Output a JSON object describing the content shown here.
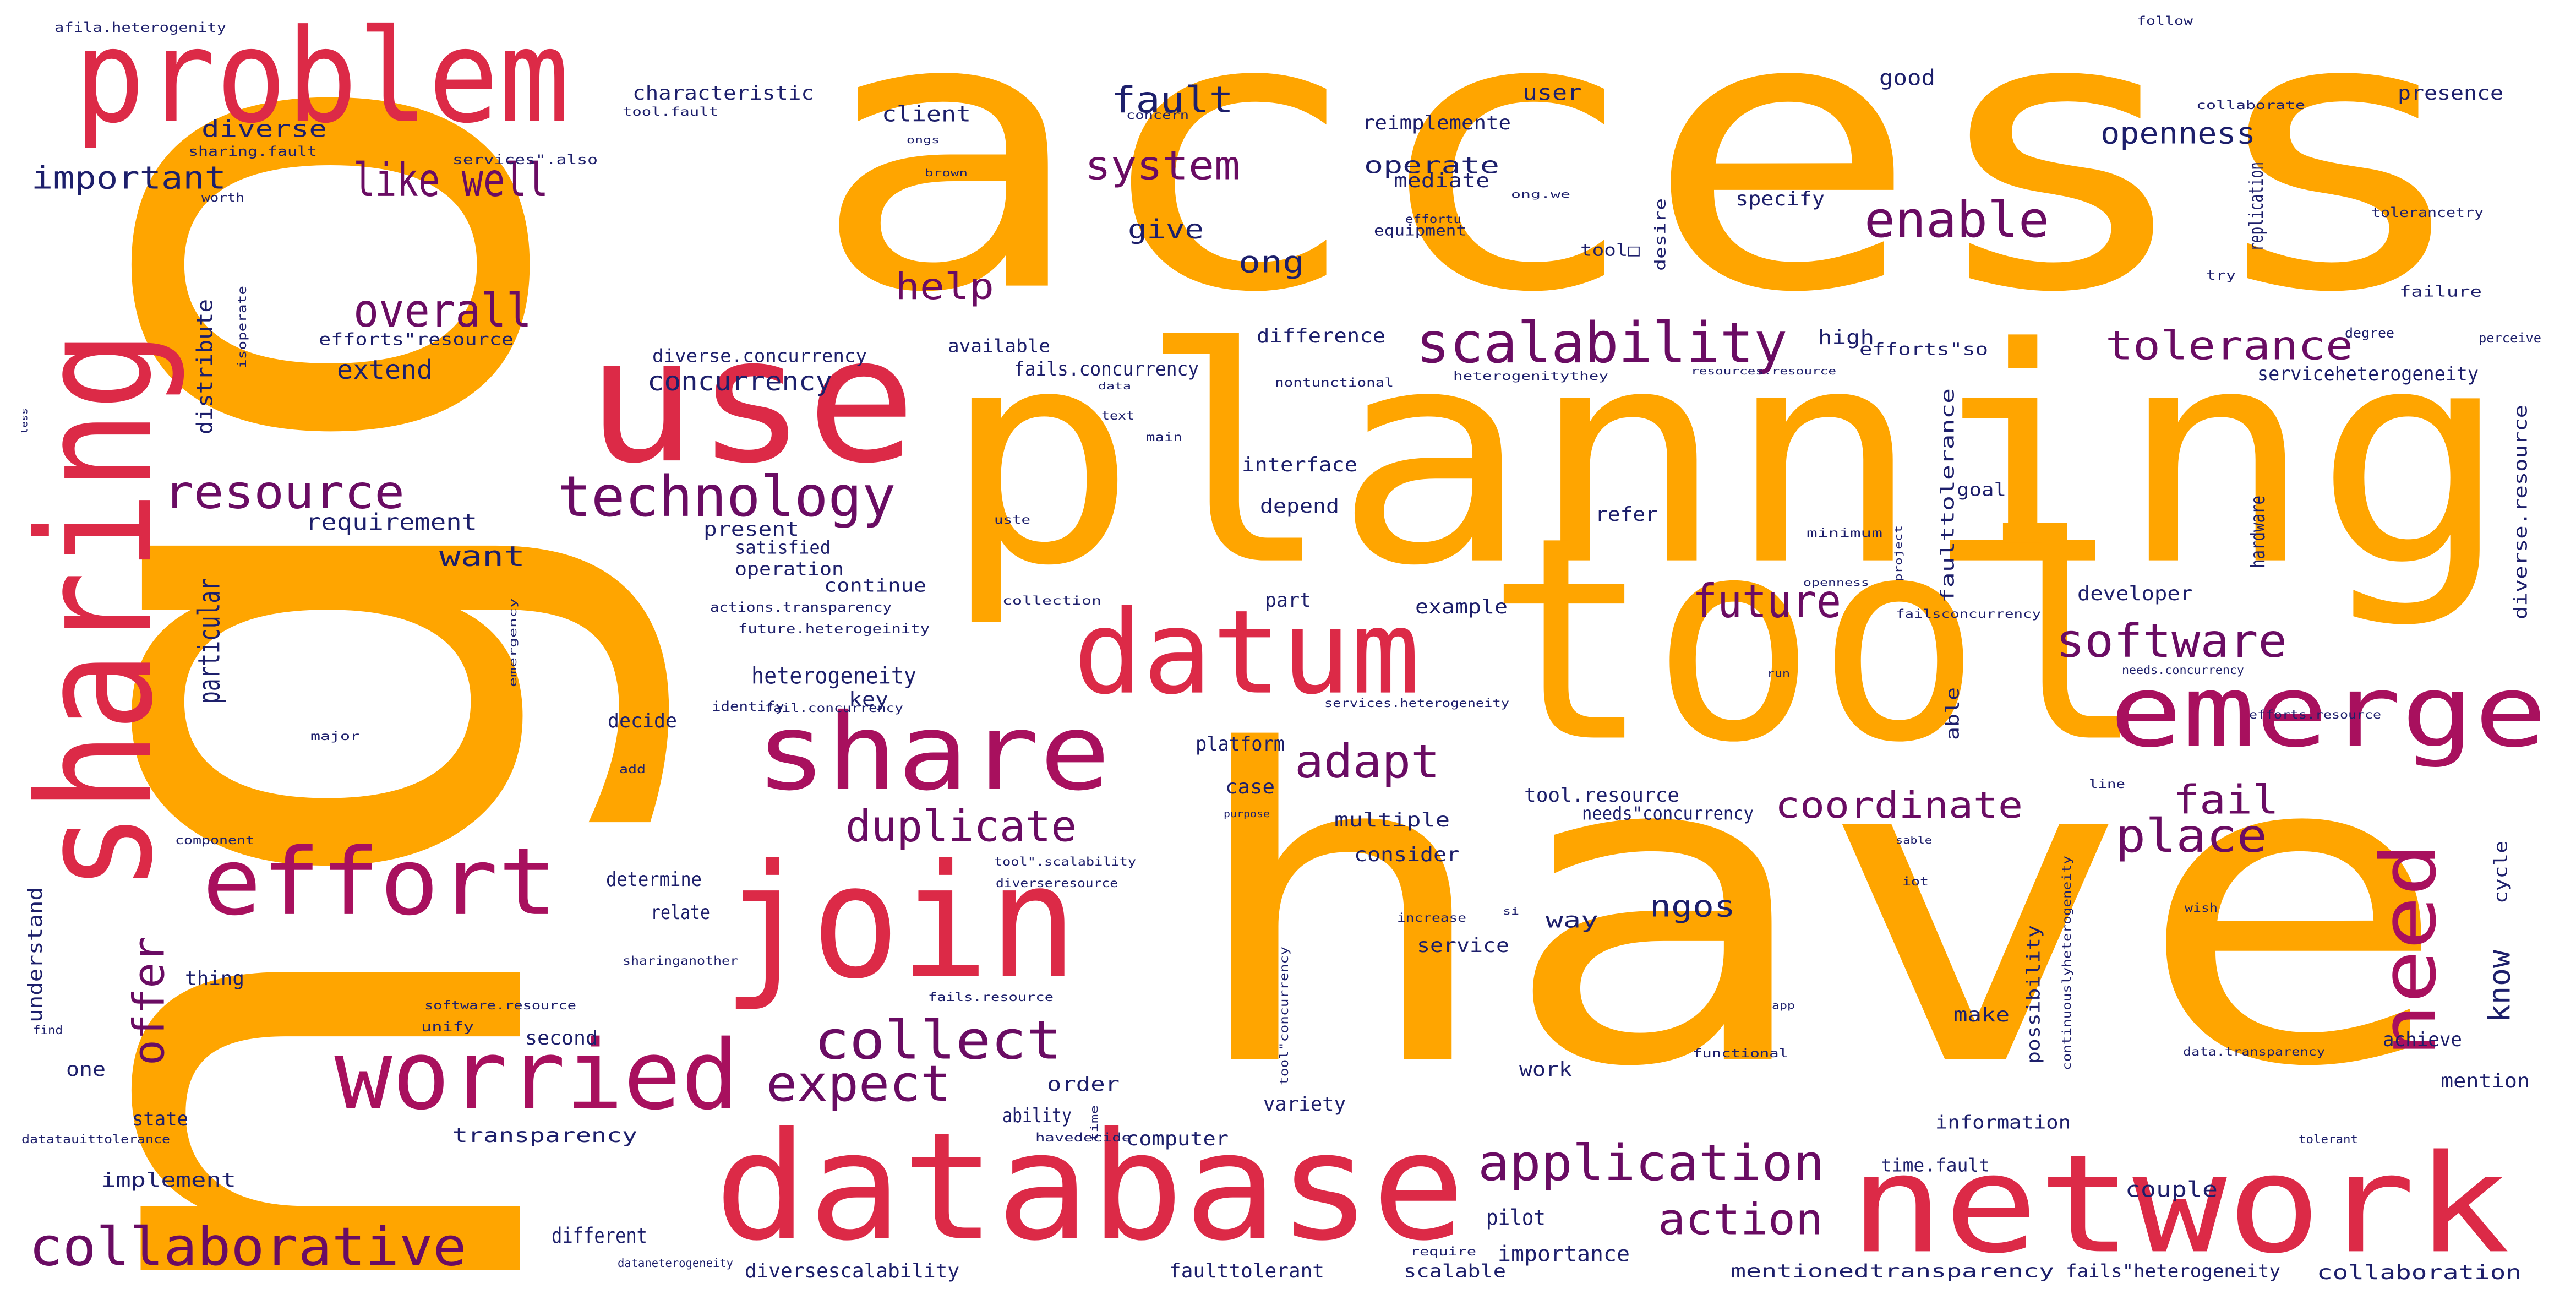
{
  "palette": {
    "orange": "#FFA500",
    "crimson": "#DC2A47",
    "magenta": "#A8105E",
    "purple": "#6A0C63",
    "navy": "#1D1F6B"
  },
  "words": [
    {
      "text": "access",
      "color": "orange"
    },
    {
      "text": "ngo",
      "color": "orange"
    },
    {
      "text": "planning",
      "color": "orange"
    },
    {
      "text": "have",
      "color": "orange"
    },
    {
      "text": "tool",
      "color": "orange"
    },
    {
      "text": "problem",
      "color": "crimson"
    },
    {
      "text": "sharing",
      "color": "crimson"
    },
    {
      "text": "use",
      "color": "crimson"
    },
    {
      "text": "database",
      "color": "crimson"
    },
    {
      "text": "join",
      "color": "crimson"
    },
    {
      "text": "network",
      "color": "crimson"
    },
    {
      "text": "share",
      "color": "magenta"
    },
    {
      "text": "datum",
      "color": "crimson"
    },
    {
      "text": "emerge",
      "color": "magenta"
    },
    {
      "text": "worried",
      "color": "magenta"
    },
    {
      "text": "effort",
      "color": "magenta"
    },
    {
      "text": "need",
      "color": "magenta"
    },
    {
      "text": "technology",
      "color": "purple"
    },
    {
      "text": "scalability",
      "color": "purple"
    },
    {
      "text": "collaborative",
      "color": "purple"
    },
    {
      "text": "application",
      "color": "purple"
    },
    {
      "text": "collect",
      "color": "purple"
    },
    {
      "text": "expect",
      "color": "purple"
    },
    {
      "text": "like well",
      "color": "purple"
    },
    {
      "text": "enable",
      "color": "purple"
    },
    {
      "text": "software",
      "color": "purple"
    },
    {
      "text": "resource",
      "color": "purple"
    },
    {
      "text": "overall",
      "color": "purple"
    },
    {
      "text": "duplicate",
      "color": "purple"
    },
    {
      "text": "adapt",
      "color": "purple"
    },
    {
      "text": "future",
      "color": "purple"
    },
    {
      "text": "place",
      "color": "purple"
    },
    {
      "text": "action",
      "color": "purple"
    },
    {
      "text": "offer",
      "color": "purple"
    },
    {
      "text": "system",
      "color": "purple"
    },
    {
      "text": "tolerance",
      "color": "purple"
    },
    {
      "text": "coordinate",
      "color": "purple"
    },
    {
      "text": "help",
      "color": "purple"
    },
    {
      "text": "fail",
      "color": "purple"
    },
    {
      "text": "fault",
      "color": "navy"
    },
    {
      "text": "openness",
      "color": "navy"
    },
    {
      "text": "important",
      "color": "navy"
    },
    {
      "text": "particular",
      "color": "navy"
    },
    {
      "text": "ong",
      "color": "navy"
    },
    {
      "text": "know",
      "color": "navy"
    },
    {
      "text": "want",
      "color": "navy"
    },
    {
      "text": "ngos",
      "color": "navy"
    },
    {
      "text": "concurrency",
      "color": "navy"
    },
    {
      "text": "heterogeneity",
      "color": "navy"
    },
    {
      "text": "give",
      "color": "navy"
    },
    {
      "text": "operate",
      "color": "navy"
    },
    {
      "text": "extend",
      "color": "navy"
    },
    {
      "text": "requirement",
      "color": "navy"
    },
    {
      "text": "diverse",
      "color": "navy"
    },
    {
      "text": "characteristic",
      "color": "navy"
    },
    {
      "text": "client",
      "color": "navy"
    },
    {
      "text": "user",
      "color": "navy"
    },
    {
      "text": "good",
      "color": "navy"
    },
    {
      "text": "presence",
      "color": "navy"
    },
    {
      "text": "reimplemente",
      "color": "navy"
    },
    {
      "text": "mediate",
      "color": "navy"
    },
    {
      "text": "specify",
      "color": "navy"
    },
    {
      "text": "replication",
      "color": "navy"
    },
    {
      "text": "serviceheterogeneity",
      "color": "navy"
    },
    {
      "text": "diverse.concurrency",
      "color": "navy"
    },
    {
      "text": "fails.concurrency",
      "color": "navy"
    },
    {
      "text": "distribute",
      "color": "navy"
    },
    {
      "text": "available",
      "color": "navy"
    },
    {
      "text": "difference",
      "color": "navy"
    },
    {
      "text": "high",
      "color": "navy"
    },
    {
      "text": "interface",
      "color": "navy"
    },
    {
      "text": "depend",
      "color": "navy"
    },
    {
      "text": "present",
      "color": "navy"
    },
    {
      "text": "satisfied",
      "color": "navy"
    },
    {
      "text": "operation",
      "color": "navy"
    },
    {
      "text": "continue",
      "color": "navy"
    },
    {
      "text": "part",
      "color": "navy"
    },
    {
      "text": "example",
      "color": "navy"
    },
    {
      "text": "refer",
      "color": "navy"
    },
    {
      "text": "developer",
      "color": "navy"
    },
    {
      "text": "hardware",
      "color": "navy"
    },
    {
      "text": "diverse.resource",
      "color": "navy"
    },
    {
      "text": "faulttolerance",
      "color": "navy"
    },
    {
      "text": "goal",
      "color": "navy"
    },
    {
      "text": "key",
      "color": "navy"
    },
    {
      "text": "decide",
      "color": "navy"
    },
    {
      "text": "platform",
      "color": "navy"
    },
    {
      "text": "case",
      "color": "navy"
    },
    {
      "text": "multiple",
      "color": "navy"
    },
    {
      "text": "tool.resource",
      "color": "navy"
    },
    {
      "text": "needs\"concurrency",
      "color": "navy"
    },
    {
      "text": "consider",
      "color": "navy"
    },
    {
      "text": "determine",
      "color": "navy"
    },
    {
      "text": "relate",
      "color": "navy"
    },
    {
      "text": "understand",
      "color": "navy"
    },
    {
      "text": "way",
      "color": "navy"
    },
    {
      "text": "service",
      "color": "navy"
    },
    {
      "text": "able",
      "color": "navy"
    },
    {
      "text": "possibility",
      "color": "navy"
    },
    {
      "text": "make",
      "color": "navy"
    },
    {
      "text": "cycle",
      "color": "navy"
    },
    {
      "text": "achieve",
      "color": "navy"
    },
    {
      "text": "mention",
      "color": "navy"
    },
    {
      "text": "thing",
      "color": "navy"
    },
    {
      "text": "second",
      "color": "navy"
    },
    {
      "text": "one",
      "color": "navy"
    },
    {
      "text": "state",
      "color": "navy"
    },
    {
      "text": "transparency",
      "color": "navy"
    },
    {
      "text": "implement",
      "color": "navy"
    },
    {
      "text": "different",
      "color": "navy"
    },
    {
      "text": "diversescalability",
      "color": "navy"
    },
    {
      "text": "faulttolerant",
      "color": "navy"
    },
    {
      "text": "scalable",
      "color": "navy"
    },
    {
      "text": "importance",
      "color": "navy"
    },
    {
      "text": "pilot",
      "color": "navy"
    },
    {
      "text": "order",
      "color": "navy"
    },
    {
      "text": "ability",
      "color": "navy"
    },
    {
      "text": "computer",
      "color": "navy"
    },
    {
      "text": "variety",
      "color": "navy"
    },
    {
      "text": "work",
      "color": "navy"
    },
    {
      "text": "information",
      "color": "navy"
    },
    {
      "text": "time.fault",
      "color": "navy"
    },
    {
      "text": "couple",
      "color": "navy"
    },
    {
      "text": "collaboration",
      "color": "navy"
    },
    {
      "text": "mentionedtransparency",
      "color": "navy"
    },
    {
      "text": "fails\"heterogeneity",
      "color": "navy"
    },
    {
      "text": "failure",
      "color": "navy"
    },
    {
      "text": "degree",
      "color": "navy"
    },
    {
      "text": "perceive",
      "color": "navy"
    },
    {
      "text": "try",
      "color": "navy"
    },
    {
      "text": "tolerancetry",
      "color": "navy"
    },
    {
      "text": "efforts\"so",
      "color": "navy"
    },
    {
      "text": "efforts\"resource",
      "color": "navy"
    },
    {
      "text": "equipment",
      "color": "navy"
    },
    {
      "text": "desire",
      "color": "navy"
    },
    {
      "text": "tool□",
      "color": "navy"
    },
    {
      "text": "afila.heterogenity",
      "color": "navy"
    },
    {
      "text": "sharing.fault",
      "color": "navy"
    },
    {
      "text": "services\".also",
      "color": "navy"
    },
    {
      "text": "follow",
      "color": "navy"
    },
    {
      "text": "collaborate",
      "color": "navy"
    },
    {
      "text": "nontunctional",
      "color": "navy"
    },
    {
      "text": "heterogenitythey",
      "color": "navy"
    },
    {
      "text": "main",
      "color": "navy"
    },
    {
      "text": "text",
      "color": "navy"
    },
    {
      "text": "data",
      "color": "navy"
    },
    {
      "text": "minimum",
      "color": "navy"
    },
    {
      "text": "openness",
      "color": "navy"
    },
    {
      "text": "project",
      "color": "navy"
    },
    {
      "text": "failsconcurrency",
      "color": "navy"
    },
    {
      "text": "needs.concurrency",
      "color": "navy"
    },
    {
      "text": "efforts.resource",
      "color": "navy"
    },
    {
      "text": "services.heterogeneity",
      "color": "navy"
    },
    {
      "text": "fail.concurrency",
      "color": "navy"
    },
    {
      "text": "identify",
      "color": "navy"
    },
    {
      "text": "future.heterogeinity",
      "color": "navy"
    },
    {
      "text": "actions.transparency",
      "color": "navy"
    },
    {
      "text": "collection",
      "color": "navy"
    },
    {
      "text": "uste",
      "color": "navy"
    },
    {
      "text": "major",
      "color": "navy"
    },
    {
      "text": "add",
      "color": "navy"
    },
    {
      "text": "component",
      "color": "navy"
    },
    {
      "text": "purpose",
      "color": "navy"
    },
    {
      "text": "tool\".scalability",
      "color": "navy"
    },
    {
      "text": "diverseresource",
      "color": "navy"
    },
    {
      "text": "sharinganother",
      "color": "navy"
    },
    {
      "text": "software.resource",
      "color": "navy"
    },
    {
      "text": "unify",
      "color": "navy"
    },
    {
      "text": "fails.resource",
      "color": "navy"
    },
    {
      "text": "tool\"concurrency",
      "color": "navy"
    },
    {
      "text": "increase",
      "color": "navy"
    },
    {
      "text": "continuouslyheterogeneity",
      "color": "navy"
    },
    {
      "text": "data.transparency",
      "color": "navy"
    },
    {
      "text": "functional",
      "color": "navy"
    },
    {
      "text": "line",
      "color": "navy"
    },
    {
      "text": "iot",
      "color": "navy"
    },
    {
      "text": "wish",
      "color": "navy"
    },
    {
      "text": "tolerant",
      "color": "navy"
    },
    {
      "text": "require",
      "color": "navy"
    },
    {
      "text": "dataneterogeneity",
      "color": "navy"
    },
    {
      "text": "datatauittolerance",
      "color": "navy"
    },
    {
      "text": "havedecide",
      "color": "navy"
    },
    {
      "text": "find",
      "color": "navy"
    },
    {
      "text": "time",
      "color": "navy"
    },
    {
      "text": "worth",
      "color": "navy"
    },
    {
      "text": "isoperate",
      "color": "navy"
    },
    {
      "text": "tool.fault",
      "color": "navy"
    },
    {
      "text": "concern",
      "color": "navy"
    },
    {
      "text": "effortu",
      "color": "navy"
    },
    {
      "text": "ong.we",
      "color": "navy"
    },
    {
      "text": "brown",
      "color": "navy"
    },
    {
      "text": "ongs",
      "color": "navy"
    },
    {
      "text": "sable",
      "color": "navy"
    },
    {
      "text": "app",
      "color": "navy"
    },
    {
      "text": "si",
      "color": "navy"
    },
    {
      "text": "emergency",
      "color": "navy"
    },
    {
      "text": "resources.resource",
      "color": "navy"
    },
    {
      "text": "less",
      "color": "navy"
    },
    {
      "text": "run",
      "color": "navy"
    }
  ]
}
